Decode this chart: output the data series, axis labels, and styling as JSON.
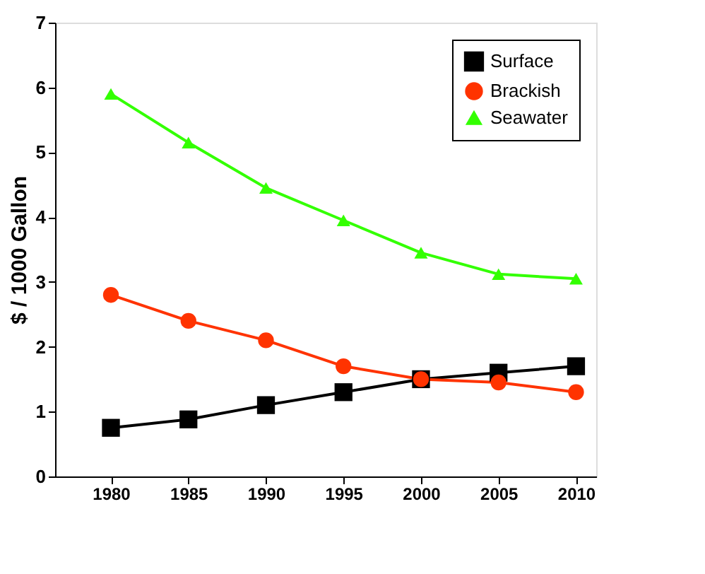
{
  "chart_data": {
    "type": "line",
    "ylabel": "$ / 1000 Gallon",
    "x": [
      1980,
      1985,
      1990,
      1995,
      2000,
      2005,
      2010
    ],
    "series": [
      {
        "name": "Surface",
        "color": "#000000",
        "marker": "square",
        "values": [
          0.75,
          0.88,
          1.1,
          1.3,
          1.5,
          1.6,
          1.7
        ]
      },
      {
        "name": "Brackish",
        "color": "#ff3300",
        "marker": "circle",
        "values": [
          2.8,
          2.4,
          2.1,
          1.7,
          1.5,
          1.45,
          1.3
        ]
      },
      {
        "name": "Seawater",
        "color": "#33ff00",
        "marker": "triangle",
        "values": [
          5.9,
          5.15,
          4.45,
          3.95,
          3.45,
          3.12,
          3.05
        ]
      }
    ],
    "xlim": [
      1976.4,
      2011.3
    ],
    "xticks": [
      1980,
      1985,
      1990,
      1995,
      2000,
      2005,
      2010
    ],
    "ylim": [
      0,
      7
    ],
    "yticks": [
      0,
      1,
      2,
      3,
      4,
      5,
      6,
      7
    ],
    "grid": false,
    "legend": "top right",
    "line_style": "solid"
  }
}
